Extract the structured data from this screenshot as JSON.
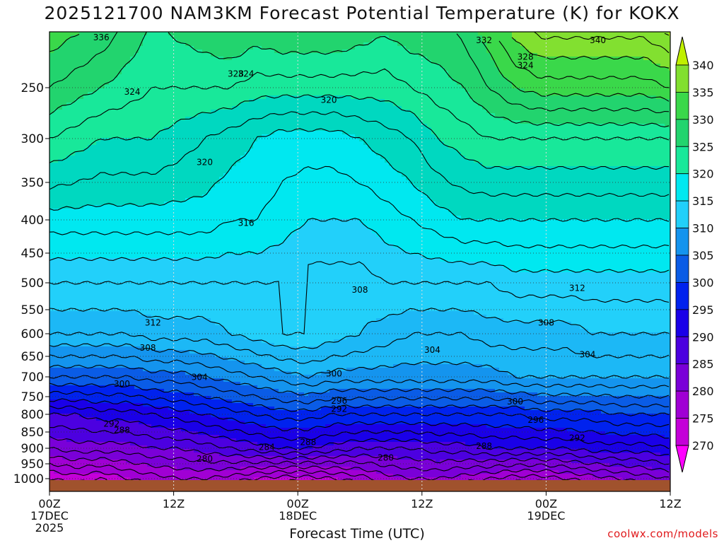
{
  "title": "2025121700 NAM3KM Forecast Potential Temperature (K) for KOKX",
  "credit": "coolwx.com/models",
  "chart_data": {
    "type": "heatmap",
    "title": "2025121700 NAM3KM Forecast Potential Temperature (K) for KOKX",
    "xlabel": "Forecast Time (UTC)",
    "ylabel": "",
    "x_unit": "forecast hour",
    "xlim": [
      0,
      60
    ],
    "y_unit": "pressure (hPa)",
    "ylim": [
      1040,
      210
    ],
    "y_ticks": [
      250,
      300,
      350,
      400,
      450,
      500,
      550,
      600,
      650,
      700,
      750,
      800,
      850,
      900,
      950,
      1000
    ],
    "x_ticks": [
      {
        "hour": 0,
        "lines": [
          "00Z",
          "17DEC",
          "2025"
        ]
      },
      {
        "hour": 12,
        "lines": [
          "12Z"
        ]
      },
      {
        "hour": 24,
        "lines": [
          "00Z",
          "18DEC"
        ]
      },
      {
        "hour": 36,
        "lines": [
          "12Z"
        ]
      },
      {
        "hour": 48,
        "lines": [
          "00Z",
          "19DEC"
        ]
      },
      {
        "hour": 60,
        "lines": [
          "12Z"
        ]
      }
    ],
    "colorbar": {
      "levels": [
        270,
        275,
        280,
        285,
        290,
        295,
        300,
        305,
        310,
        315,
        320,
        325,
        330,
        335,
        340
      ],
      "colors": [
        "#ff00ff",
        "#e200e6",
        "#c400d8",
        "#a000d4",
        "#7a00d8",
        "#4c00e0",
        "#1a00e8",
        "#0022ee",
        "#0a5ce6",
        "#1494ee",
        "#1cb8f6",
        "#22d0fa",
        "#00e8f0",
        "#00d8c0",
        "#18e89a",
        "#22d46e",
        "#3ad84a",
        "#82e030",
        "#c0f000"
      ],
      "labels": [
        "270",
        "275",
        "280",
        "285",
        "290",
        "295",
        "300",
        "305",
        "310",
        "315",
        "320",
        "325",
        "330",
        "335",
        "340"
      ]
    },
    "series": [
      {
        "name": "theta_at_1000hPa",
        "pressure": 1000,
        "values": [
          276,
          277,
          276,
          278,
          279,
          280,
          280,
          279,
          278,
          277,
          277,
          278,
          279,
          281,
          282,
          282,
          281,
          280,
          279,
          279,
          280,
          281,
          282,
          283,
          284
        ]
      },
      {
        "name": "theta_at_900hPa",
        "pressure": 900,
        "values": [
          284,
          285,
          285,
          285,
          286,
          286,
          287,
          288,
          289,
          290,
          290,
          289,
          288,
          288,
          288,
          289,
          289,
          290,
          290,
          290,
          290,
          291,
          291,
          291,
          292
        ]
      },
      {
        "name": "theta_at_800hPa",
        "pressure": 800,
        "values": [
          290,
          290,
          291,
          291,
          292,
          293,
          294,
          295,
          296,
          297,
          297,
          296,
          296,
          296,
          296,
          296,
          296,
          296,
          296,
          297,
          297,
          297,
          298,
          298,
          298
        ]
      },
      {
        "name": "theta_at_700hPa",
        "pressure": 700,
        "values": [
          300,
          300,
          300,
          300,
          301,
          301,
          302,
          303,
          304,
          305,
          306,
          305,
          305,
          305,
          305,
          305,
          305,
          305,
          306,
          306,
          306,
          306,
          306,
          306,
          306
        ]
      },
      {
        "name": "theta_at_600hPa",
        "pressure": 600,
        "values": [
          308,
          308,
          308,
          308,
          309,
          309,
          309,
          310,
          311,
          312,
          312,
          311,
          310,
          309,
          308,
          308,
          308,
          309,
          309,
          309,
          309,
          310,
          310,
          310,
          310
        ]
      },
      {
        "name": "theta_at_500hPa",
        "pressure": 500,
        "values": [
          312,
          312,
          312,
          312,
          312,
          312,
          312,
          312,
          312,
          312,
          311,
          311,
          311,
          312,
          312,
          312,
          312,
          312,
          313,
          313,
          313,
          313,
          313,
          313,
          313
        ]
      },
      {
        "name": "theta_at_400hPa",
        "pressure": 400,
        "values": [
          317,
          317,
          317,
          317,
          317,
          317,
          317,
          316,
          316,
          315,
          314,
          314,
          314,
          315,
          316,
          317,
          318,
          318,
          318,
          318,
          318,
          318,
          318,
          318,
          318
        ]
      },
      {
        "name": "theta_at_300hPa",
        "pressure": 300,
        "values": [
          324,
          323,
          322,
          322,
          322,
          321,
          320,
          319,
          318,
          317,
          317,
          317,
          318,
          319,
          320,
          322,
          323,
          324,
          324,
          324,
          324,
          324,
          324,
          324,
          324
        ]
      },
      {
        "name": "theta_at_250hPa",
        "pressure": 250,
        "values": [
          328,
          327,
          326,
          325,
          324,
          324,
          324,
          324,
          323,
          323,
          323,
          323,
          323,
          323,
          324,
          325,
          326,
          328,
          330,
          331,
          331,
          331,
          331,
          331,
          332
        ]
      }
    ],
    "contour_labels": [
      {
        "text": "336",
        "hour": 5.0,
        "p": 214
      },
      {
        "text": "332",
        "hour": 42.0,
        "p": 216
      },
      {
        "text": "340",
        "hour": 53.0,
        "p": 216
      },
      {
        "text": "328",
        "hour": 46.0,
        "p": 228
      },
      {
        "text": "328",
        "hour": 18.0,
        "p": 240
      },
      {
        "text": "324",
        "hour": 19.0,
        "p": 240
      },
      {
        "text": "324",
        "hour": 46.0,
        "p": 234
      },
      {
        "text": "324",
        "hour": 8.0,
        "p": 254
      },
      {
        "text": "320",
        "hour": 27.0,
        "p": 262
      },
      {
        "text": "320",
        "hour": 15.0,
        "p": 327
      },
      {
        "text": "316",
        "hour": 19.0,
        "p": 405
      },
      {
        "text": "308",
        "hour": 30.0,
        "p": 513
      },
      {
        "text": "312",
        "hour": 51.0,
        "p": 510
      },
      {
        "text": "312",
        "hour": 10.0,
        "p": 577
      },
      {
        "text": "308",
        "hour": 48.0,
        "p": 577
      },
      {
        "text": "308",
        "hour": 9.5,
        "p": 631
      },
      {
        "text": "304",
        "hour": 37.0,
        "p": 636
      },
      {
        "text": "304",
        "hour": 52.0,
        "p": 646
      },
      {
        "text": "304",
        "hour": 14.5,
        "p": 701
      },
      {
        "text": "300",
        "hour": 27.5,
        "p": 692
      },
      {
        "text": "300",
        "hour": 7.0,
        "p": 718
      },
      {
        "text": "300",
        "hour": 45.0,
        "p": 764
      },
      {
        "text": "296",
        "hour": 28.0,
        "p": 762
      },
      {
        "text": "292",
        "hour": 28.0,
        "p": 785
      },
      {
        "text": "296",
        "hour": 47.0,
        "p": 816
      },
      {
        "text": "292",
        "hour": 6.0,
        "p": 827
      },
      {
        "text": "288",
        "hour": 7.0,
        "p": 845
      },
      {
        "text": "292",
        "hour": 51.0,
        "p": 868
      },
      {
        "text": "288",
        "hour": 25.0,
        "p": 881
      },
      {
        "text": "288",
        "hour": 42.0,
        "p": 893
      },
      {
        "text": "284",
        "hour": 21.0,
        "p": 897
      },
      {
        "text": "280",
        "hour": 15.0,
        "p": 934
      },
      {
        "text": "280",
        "hour": 32.5,
        "p": 931
      }
    ]
  }
}
